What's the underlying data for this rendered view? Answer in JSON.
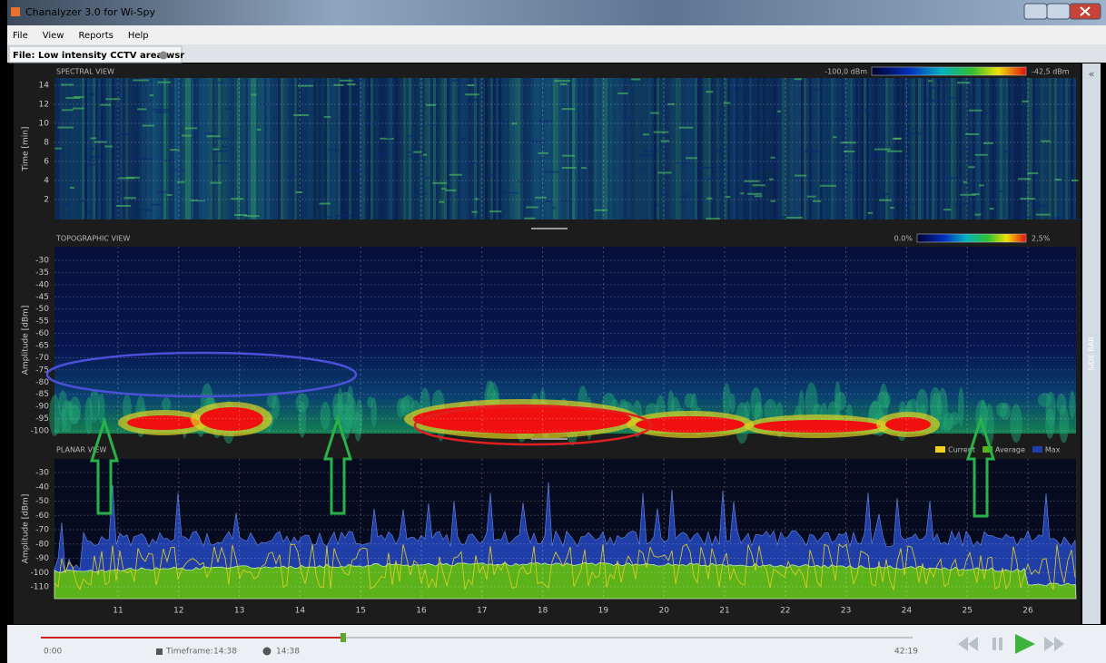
{
  "window": {
    "title": "Chanalyzer 3.0 for Wi-Spy"
  },
  "menu": [
    "File",
    "View",
    "Reports",
    "Help"
  ],
  "file_tab": "File: Low intensity CCTV area.wsr",
  "spectral_view": {
    "title": "SPECTRAL VIEW",
    "y_label": "Time [min]",
    "yticks": [
      14,
      12,
      10,
      8,
      6,
      4,
      2
    ],
    "scale_min": "-100,0 dBm",
    "scale_max": "-42,5 dBm"
  },
  "topographic_view": {
    "title": "TOPOGRAPHIC VIEW",
    "y_label": "Amplitude [dBm]",
    "yticks": [
      -30,
      -35,
      -40,
      -45,
      -50,
      -55,
      -60,
      -65,
      -70,
      -75,
      -80,
      -85,
      -90,
      -95,
      -100
    ],
    "scale_min": "0.0%",
    "scale_max": "2,5%"
  },
  "planar_view": {
    "title": "PLANAR VIEW",
    "y_label": "Amplitude [dBm]",
    "yticks": [
      -30,
      -40,
      -50,
      -60,
      -70,
      -80,
      -90,
      -100,
      -110
    ],
    "legend": [
      "Current",
      "Average",
      "Max"
    ]
  },
  "xticks": [
    11,
    12,
    13,
    14,
    15,
    16,
    17,
    18,
    19,
    20,
    21,
    22,
    23,
    24,
    25,
    26
  ],
  "side_bar": "SIDE BAR",
  "playback": {
    "start": "0:00",
    "timeframe_label": "Timeframe:",
    "timeframe": "14:38",
    "position": "14:38",
    "end": "42:19"
  }
}
